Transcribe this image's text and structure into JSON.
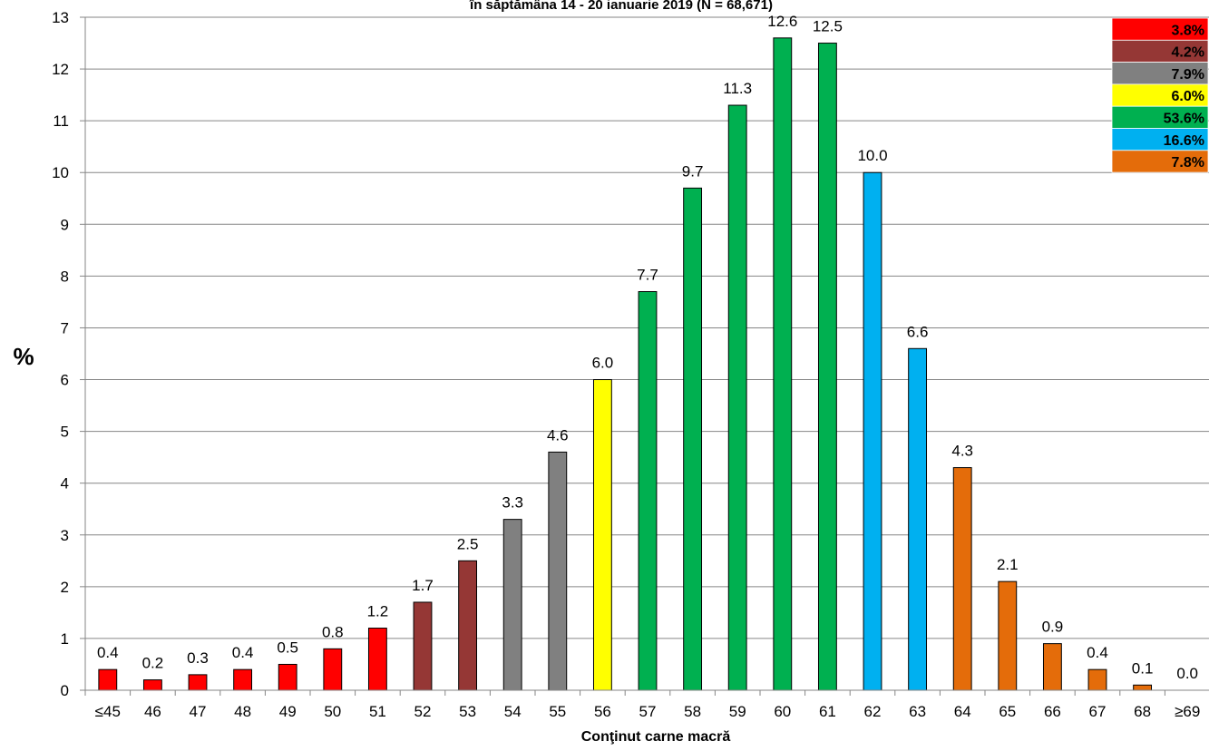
{
  "chart_data": {
    "type": "bar",
    "title": "în săptămâna 14 - 20 ianuarie 2019 (N = 68,671)",
    "xlabel": "Conţinut carne macră",
    "ylabel": "%",
    "ylim": [
      0,
      13
    ],
    "yticks": [
      0,
      1,
      2,
      3,
      4,
      5,
      6,
      7,
      8,
      9,
      10,
      11,
      12,
      13
    ],
    "grid": true,
    "categories": [
      "≤45",
      "46",
      "47",
      "48",
      "49",
      "50",
      "51",
      "52",
      "53",
      "54",
      "55",
      "56",
      "57",
      "58",
      "59",
      "60",
      "61",
      "62",
      "63",
      "64",
      "65",
      "66",
      "67",
      "68",
      "≥69"
    ],
    "values": [
      0.4,
      0.2,
      0.3,
      0.4,
      0.5,
      0.8,
      1.2,
      1.7,
      2.5,
      3.3,
      4.6,
      6.0,
      7.7,
      9.7,
      11.3,
      12.6,
      12.5,
      10.0,
      6.6,
      4.3,
      2.1,
      0.9,
      0.4,
      0.1,
      0.0
    ],
    "data_labels": [
      "0.4",
      "0.2",
      "0.3",
      "0.4",
      "0.5",
      "0.8",
      "1.2",
      "1.7",
      "2.5",
      "3.3",
      "4.6",
      "6.0",
      "7.7",
      "9.7",
      "11.3",
      "12.6",
      "12.5",
      "10.0",
      "6.6",
      "4.3",
      "2.1",
      "0.9",
      "0.4",
      "0.1",
      "0.0"
    ],
    "bar_colors": [
      "#ff0000",
      "#ff0000",
      "#ff0000",
      "#ff0000",
      "#ff0000",
      "#ff0000",
      "#ff0000",
      "#953735",
      "#953735",
      "#808080",
      "#808080",
      "#ffff00",
      "#00b050",
      "#00b050",
      "#00b050",
      "#00b050",
      "#00b050",
      "#00b0f0",
      "#00b0f0",
      "#e46c0a",
      "#e46c0a",
      "#e46c0a",
      "#e46c0a",
      "#e46c0a",
      "#e46c0a"
    ],
    "legend_position": "top-right",
    "legend": [
      {
        "label": "3.8%",
        "color": "#ff0000"
      },
      {
        "label": "4.2%",
        "color": "#953735"
      },
      {
        "label": "7.9%",
        "color": "#808080"
      },
      {
        "label": "6.0%",
        "color": "#ffff00"
      },
      {
        "label": "53.6%",
        "color": "#00b050"
      },
      {
        "label": "16.6%",
        "color": "#00b0f0"
      },
      {
        "label": "7.8%",
        "color": "#e46c0a"
      }
    ]
  }
}
